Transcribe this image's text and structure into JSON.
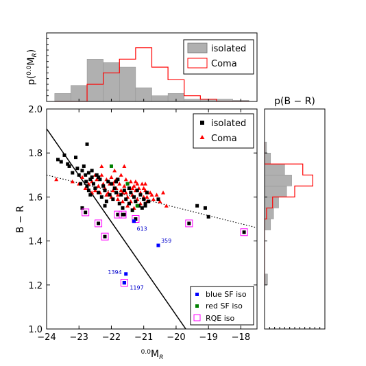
{
  "chart_data": [
    {
      "panel": "main",
      "type": "scatter",
      "xlabel_prefix": "0.0",
      "xlabel": "M",
      "xlabel_sub": "R",
      "ylabel": "B − R",
      "xlim": [
        -24,
        -17.5
      ],
      "ylim": [
        1.0,
        2.0
      ],
      "x_ticks": [
        -24,
        -23,
        -22,
        -21,
        -20,
        -19,
        -18
      ],
      "x_tick_labels": [
        "−24",
        "−23",
        "−22",
        "−21",
        "−20",
        "−19",
        "−18"
      ],
      "y_ticks": [
        1.0,
        1.2,
        1.4,
        1.6,
        1.8,
        2.0
      ],
      "y_tick_labels": [
        "1.0",
        "1.2",
        "1.4",
        "1.6",
        "1.8",
        "2.0"
      ],
      "legend_top": [
        "isolated",
        "Coma"
      ],
      "legend_bottom": [
        "blue SF iso",
        "red SF iso",
        "RQE iso"
      ],
      "colors": {
        "isolated": "#000000",
        "coma": "#ff0000",
        "blue_sf": "#0000ff",
        "red_sf": "#008000",
        "rqe": "#ff00ff"
      },
      "series": {
        "isolated": [
          [
            -23.65,
            1.77
          ],
          [
            -23.55,
            1.76
          ],
          [
            -23.45,
            1.79
          ],
          [
            -23.35,
            1.75
          ],
          [
            -23.3,
            1.74
          ],
          [
            -23.2,
            1.71
          ],
          [
            -23.1,
            1.78
          ],
          [
            -23.05,
            1.73
          ],
          [
            -23.0,
            1.7
          ],
          [
            -22.95,
            1.66
          ],
          [
            -22.9,
            1.72
          ],
          [
            -22.85,
            1.74
          ],
          [
            -22.8,
            1.7
          ],
          [
            -22.78,
            1.67
          ],
          [
            -22.75,
            1.65
          ],
          [
            -22.7,
            1.71
          ],
          [
            -22.7,
            1.63
          ],
          [
            -22.65,
            1.68
          ],
          [
            -22.6,
            1.69
          ],
          [
            -22.6,
            1.72
          ],
          [
            -22.55,
            1.66
          ],
          [
            -22.5,
            1.64
          ],
          [
            -22.45,
            1.7
          ],
          [
            -22.4,
            1.62
          ],
          [
            -22.35,
            1.68
          ],
          [
            -22.3,
            1.6
          ],
          [
            -22.25,
            1.65
          ],
          [
            -22.2,
            1.63
          ],
          [
            -22.15,
            1.58
          ],
          [
            -22.1,
            1.67
          ],
          [
            -22.05,
            1.61
          ],
          [
            -22.0,
            1.66
          ],
          [
            -21.95,
            1.59
          ],
          [
            -21.9,
            1.64
          ],
          [
            -21.85,
            1.62
          ],
          [
            -21.8,
            1.68
          ],
          [
            -21.75,
            1.57
          ],
          [
            -21.7,
            1.61
          ],
          [
            -21.65,
            1.55
          ],
          [
            -21.6,
            1.63
          ],
          [
            -21.55,
            1.59
          ],
          [
            -21.5,
            1.66
          ],
          [
            -21.45,
            1.57
          ],
          [
            -21.4,
            1.62
          ],
          [
            -21.35,
            1.54
          ],
          [
            -21.3,
            1.6
          ],
          [
            -21.25,
            1.58
          ],
          [
            -21.2,
            1.63
          ],
          [
            -21.15,
            1.56
          ],
          [
            -21.1,
            1.61
          ],
          [
            -21.05,
            1.55
          ],
          [
            -21.0,
            1.59
          ],
          [
            -20.95,
            1.57
          ],
          [
            -20.9,
            1.62
          ],
          [
            -20.85,
            1.58
          ],
          [
            -22.75,
            1.84
          ],
          [
            -22.9,
            1.55
          ],
          [
            -21.6,
            1.52
          ],
          [
            -20.95,
            1.56
          ],
          [
            -20.55,
            1.59
          ],
          [
            -19.35,
            1.56
          ],
          [
            -19.1,
            1.55
          ],
          [
            -19.0,
            1.51
          ],
          [
            -22.4,
            1.69
          ],
          [
            -22.65,
            1.61
          ],
          [
            -22.2,
            1.56
          ],
          [
            -21.85,
            1.67
          ],
          [
            -21.45,
            1.64
          ]
        ],
        "coma": [
          [
            -23.7,
            1.68
          ],
          [
            -23.2,
            1.67
          ],
          [
            -23.0,
            1.66
          ],
          [
            -22.9,
            1.69
          ],
          [
            -22.8,
            1.64
          ],
          [
            -22.7,
            1.66
          ],
          [
            -22.6,
            1.67
          ],
          [
            -22.5,
            1.63
          ],
          [
            -22.45,
            1.68
          ],
          [
            -22.4,
            1.65
          ],
          [
            -22.35,
            1.62
          ],
          [
            -22.3,
            1.7
          ],
          [
            -22.25,
            1.66
          ],
          [
            -22.2,
            1.64
          ],
          [
            -22.15,
            1.68
          ],
          [
            -22.1,
            1.62
          ],
          [
            -22.05,
            1.66
          ],
          [
            -22.0,
            1.69
          ],
          [
            -21.95,
            1.63
          ],
          [
            -21.9,
            1.67
          ],
          [
            -21.85,
            1.64
          ],
          [
            -21.8,
            1.61
          ],
          [
            -21.75,
            1.66
          ],
          [
            -21.7,
            1.7
          ],
          [
            -21.65,
            1.62
          ],
          [
            -21.6,
            1.65
          ],
          [
            -21.55,
            1.68
          ],
          [
            -21.5,
            1.6
          ],
          [
            -21.45,
            1.64
          ],
          [
            -21.4,
            1.67
          ],
          [
            -21.35,
            1.61
          ],
          [
            -21.3,
            1.65
          ],
          [
            -21.25,
            1.63
          ],
          [
            -21.2,
            1.59
          ],
          [
            -21.15,
            1.64
          ],
          [
            -21.1,
            1.62
          ],
          [
            -21.05,
            1.66
          ],
          [
            -21.0,
            1.6
          ],
          [
            -20.95,
            1.63
          ],
          [
            -20.9,
            1.58
          ],
          [
            -20.8,
            1.62
          ],
          [
            -20.7,
            1.59
          ],
          [
            -20.6,
            1.61
          ],
          [
            -20.5,
            1.58
          ],
          [
            -20.4,
            1.62
          ],
          [
            -20.3,
            1.56
          ],
          [
            -21.6,
            1.74
          ],
          [
            -21.9,
            1.72
          ],
          [
            -22.3,
            1.74
          ],
          [
            -21.3,
            1.55
          ],
          [
            -20.9,
            1.6
          ],
          [
            -21.5,
            1.56
          ],
          [
            -21.8,
            1.59
          ],
          [
            -22.0,
            1.6
          ],
          [
            -22.6,
            1.62
          ],
          [
            -21.2,
            1.66
          ],
          [
            -21.0,
            1.64
          ],
          [
            -20.95,
            1.66
          ],
          [
            -21.7,
            1.63
          ],
          [
            -22.15,
            1.61
          ],
          [
            -21.4,
            1.58
          ],
          [
            -21.25,
            1.67
          ],
          [
            -21.65,
            1.58
          ],
          [
            -21.1,
            1.57
          ],
          [
            -20.75,
            1.61
          ],
          [
            -22.5,
            1.7
          ],
          [
            -21.95,
            1.66
          ],
          [
            -21.55,
            1.62
          ],
          [
            -21.85,
            1.68
          ],
          [
            -21.35,
            1.64
          ]
        ],
        "blue_sf": [
          {
            "x": -21.3,
            "y": 1.49,
            "label": "613"
          },
          {
            "x": -20.55,
            "y": 1.38,
            "label": "359"
          },
          {
            "x": -21.55,
            "y": 1.25,
            "label": "1394"
          },
          {
            "x": -21.6,
            "y": 1.21,
            "label": "1197"
          }
        ],
        "red_sf": [
          [
            -22.0,
            1.74
          ],
          [
            -21.5,
            1.66
          ],
          [
            -21.2,
            1.56
          ]
        ],
        "rqe": [
          [
            -22.8,
            1.53
          ],
          [
            -22.4,
            1.48
          ],
          [
            -22.2,
            1.42
          ],
          [
            -21.8,
            1.52
          ],
          [
            -21.65,
            1.52
          ],
          [
            -21.25,
            1.5
          ],
          [
            -21.6,
            1.21
          ],
          [
            -19.6,
            1.48
          ],
          [
            -17.9,
            1.44
          ]
        ]
      },
      "lines": [
        {
          "style": "solid",
          "points": [
            [
              -24.0,
              1.91
            ],
            [
              -19.7,
              1.0
            ]
          ]
        },
        {
          "style": "dotted",
          "points": [
            [
              -24.0,
              1.7
            ],
            [
              -17.5,
              1.46
            ]
          ]
        }
      ]
    },
    {
      "panel": "top",
      "type": "histogram",
      "ylabel_prefix": "p(",
      "ylabel_sup": "0.0",
      "ylabel_main": "M",
      "ylabel_sub": "R",
      "ylabel_suffix": ")",
      "xlim": [
        -24,
        -17.5
      ],
      "ylim": [
        0,
        0.6
      ],
      "bin_edges": [
        -23.75,
        -23.25,
        -22.75,
        -22.25,
        -21.75,
        -21.25,
        -20.75,
        -20.25,
        -19.75,
        -19.25,
        -18.75,
        -18.25,
        -17.75
      ],
      "legend": [
        "isolated",
        "Coma"
      ],
      "series": [
        {
          "name": "isolated",
          "style": "filled",
          "values": [
            0.07,
            0.14,
            0.37,
            0.34,
            0.3,
            0.12,
            0.05,
            0.07,
            0.02,
            0.02,
            0.02,
            0.01
          ]
        },
        {
          "name": "Coma",
          "style": "step",
          "values": [
            0.0,
            0.0,
            0.15,
            0.25,
            0.37,
            0.47,
            0.3,
            0.19,
            0.05,
            0.02,
            0.0,
            0.0
          ]
        }
      ]
    },
    {
      "panel": "right",
      "type": "histogram",
      "orientation": "horizontal",
      "title": "p(B − R)",
      "ylim": [
        1.0,
        2.0
      ],
      "xlim": [
        0,
        0.6
      ],
      "bin_edges": [
        1.2,
        1.25,
        1.3,
        1.35,
        1.4,
        1.45,
        1.5,
        1.55,
        1.6,
        1.65,
        1.7,
        1.75,
        1.8,
        1.85
      ],
      "series": [
        {
          "name": "isolated",
          "style": "filled",
          "values": [
            0.03,
            0.0,
            0.0,
            0.0,
            0.0,
            0.06,
            0.09,
            0.14,
            0.22,
            0.27,
            0.2,
            0.06,
            0.02
          ]
        },
        {
          "name": "Coma",
          "style": "step",
          "values": [
            0.0,
            0.0,
            0.0,
            0.0,
            0.0,
            0.0,
            0.02,
            0.08,
            0.3,
            0.48,
            0.38,
            0.0,
            0.0
          ]
        }
      ]
    }
  ]
}
